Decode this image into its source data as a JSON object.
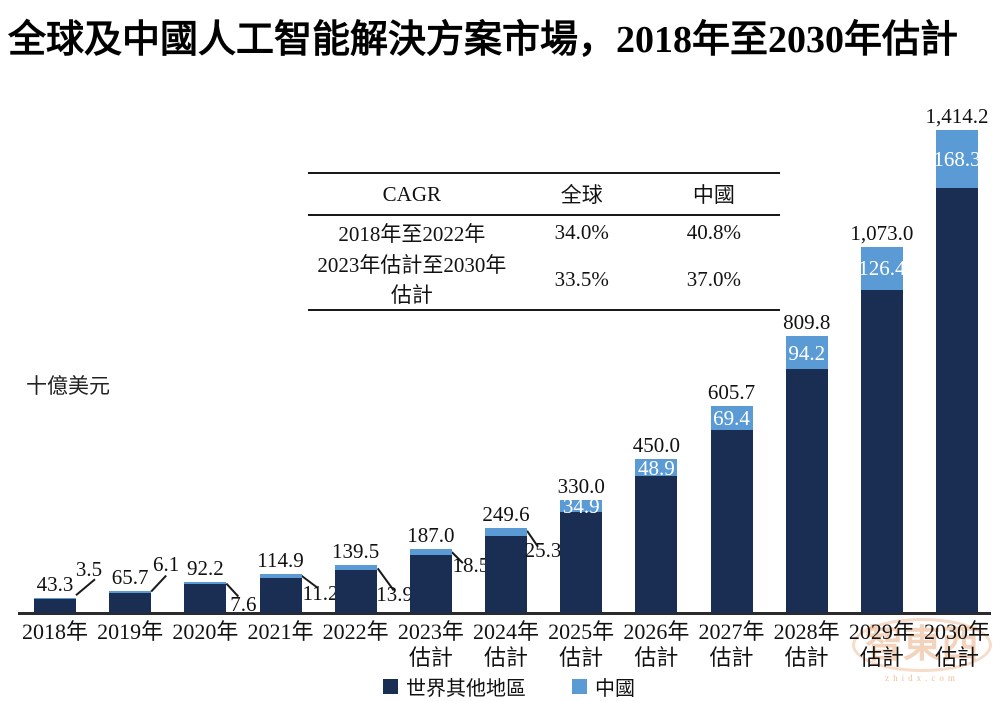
{
  "title": "全球及中國人工智能解決方案市場，2018年至2030年估計",
  "cagr_table": {
    "headers": [
      "CAGR",
      "全球",
      "中國"
    ],
    "rows": [
      [
        "2018年至2022年",
        "34.0%",
        "40.8%"
      ],
      [
        "2023年估計至2030年估計",
        "33.5%",
        "37.0%"
      ]
    ]
  },
  "legend": [
    {
      "label": "世界其他地區",
      "color": "#1A2D52"
    },
    {
      "label": "中國",
      "color": "#5B9BD5"
    }
  ],
  "watermark": {
    "logo": "智東西",
    "domain": "zhidx.com"
  },
  "chart_data": {
    "type": "bar",
    "stacked": true,
    "title": "全球及中國人工智能解決方案市場，2018年至2030年估計",
    "unit_label": "十億美元",
    "ylabel": "十億美元",
    "xlabel": "",
    "ylim": [
      0,
      1500
    ],
    "grid": false,
    "legend_position": "bottom",
    "categories": [
      "2018年",
      "2019年",
      "2020年",
      "2021年",
      "2022年",
      "2023年估計",
      "2024年估計",
      "2025年估計",
      "2026年估計",
      "2027年估計",
      "2028年估計",
      "2029年估計",
      "2030年估計"
    ],
    "series": [
      {
        "name": "世界其他地區",
        "color": "#1A2D52",
        "values": [
          39.8,
          59.6,
          84.6,
          103.7,
          125.6,
          168.5,
          224.3,
          295.1,
          401.1,
          536.3,
          715.6,
          946.6,
          1245.9
        ]
      },
      {
        "name": "中國",
        "color": "#5B9BD5",
        "values": [
          3.5,
          6.1,
          7.6,
          11.2,
          13.9,
          18.5,
          25.3,
          34.9,
          48.9,
          69.4,
          94.2,
          126.4,
          168.3
        ]
      }
    ],
    "totals": [
      43.3,
      65.7,
      92.2,
      114.9,
      139.5,
      187.0,
      249.6,
      330.0,
      450.0,
      605.7,
      809.8,
      1073.0,
      1414.2
    ],
    "total_labels": [
      "43.3",
      "65.7",
      "92.2",
      "114.9",
      "139.5",
      "187.0",
      "249.6",
      "330.0",
      "450.0",
      "605.7",
      "809.8",
      "1,073.0",
      "1,414.2"
    ],
    "china_labels": [
      "3.5",
      "6.1",
      "7.6",
      "11.2",
      "13.9",
      "18.5",
      "25.3",
      "34.9",
      "48.9",
      "69.4",
      "94.2",
      "126.4",
      "168.3"
    ]
  }
}
